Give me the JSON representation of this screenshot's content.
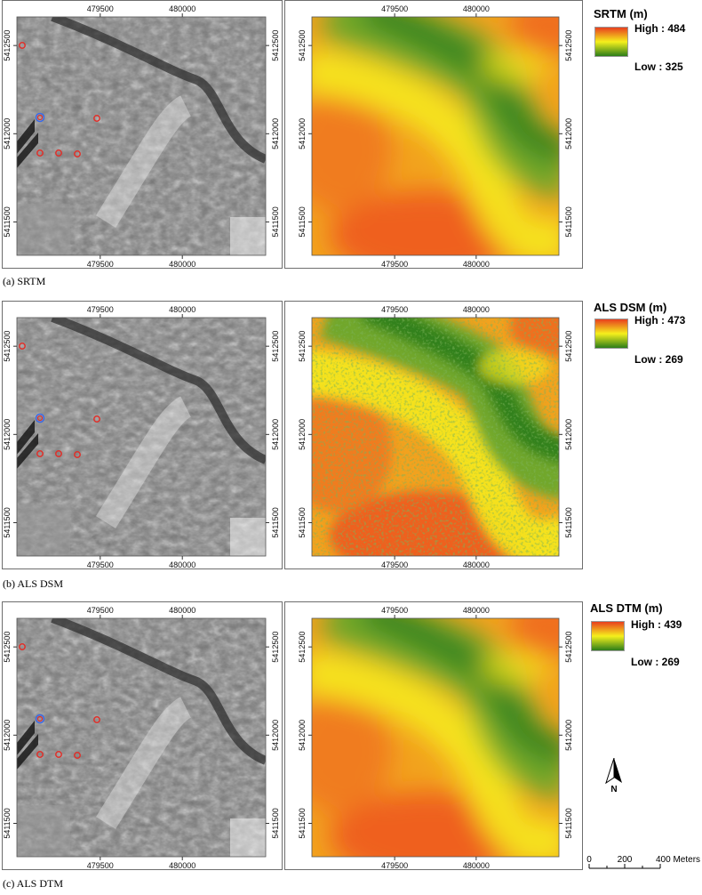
{
  "panels": [
    {
      "caption": "(a) SRTM",
      "legend_title": "SRTM (m)",
      "high": "High : 484",
      "low": "Low : 325"
    },
    {
      "caption": "(b) ALS DSM",
      "legend_title": "ALS DSM (m)",
      "high": "High : 473",
      "low": "Low : 269"
    },
    {
      "caption": "(c) ALS DTM",
      "legend_title": "ALS DTM (m)",
      "high": "High : 439",
      "low": "Low : 269"
    }
  ],
  "axes": {
    "x_ticks": [
      "479500",
      "480000"
    ],
    "y_ticks": [
      "5412500",
      "5412000",
      "5411500"
    ]
  },
  "colors": {
    "ramp_high": "#e8401e",
    "ramp_mid": "#f5f01c",
    "ramp_low": "#2c7d1a",
    "marker_red": "#e0302a",
    "marker_blue": "#3a6ae8"
  },
  "north_arrow": {
    "label": "N"
  },
  "scale_bar": {
    "labels": [
      "0",
      "200",
      "400 Meters"
    ]
  }
}
